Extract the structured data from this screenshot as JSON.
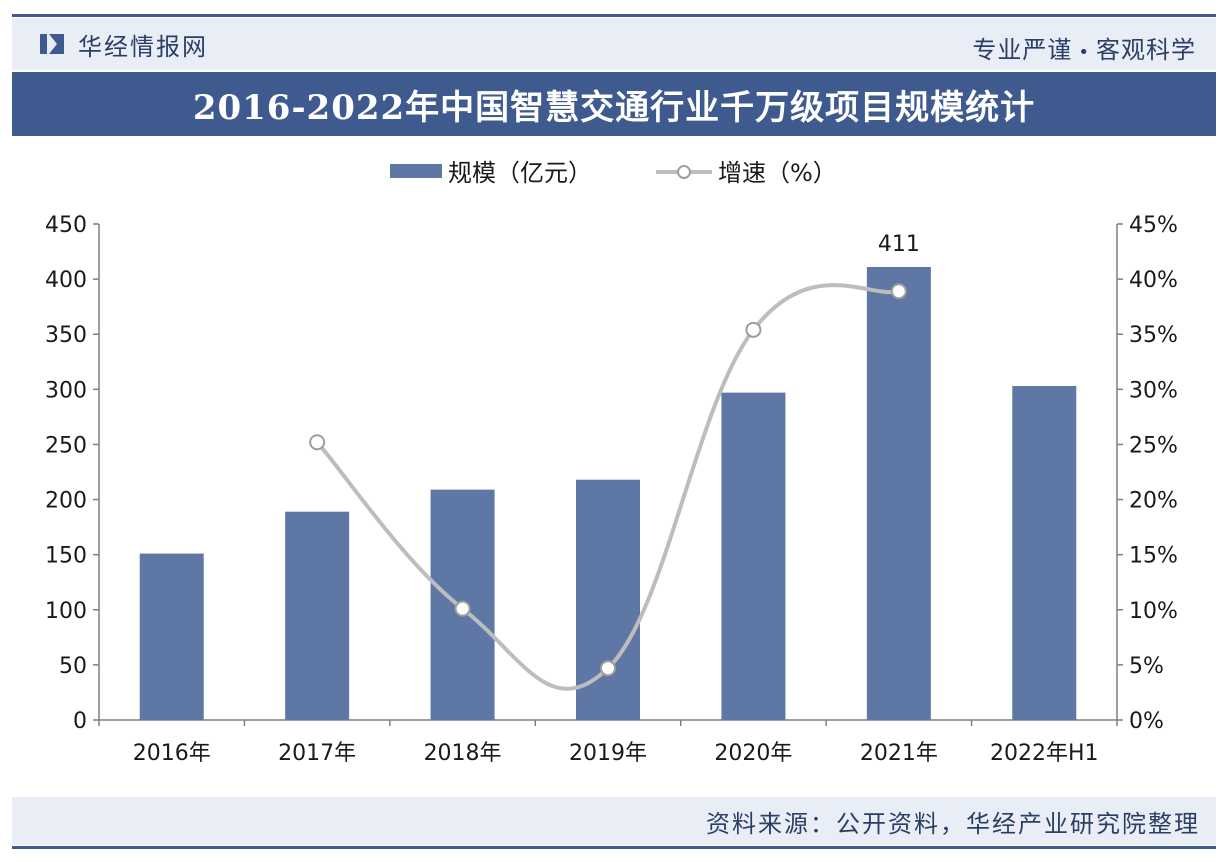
{
  "header": {
    "brand_name": "华经情报网",
    "slogan_left": "专业严谨",
    "slogan_sep": "•",
    "slogan_right": "客观科学"
  },
  "title": "2016-2022年中国智慧交通行业千万级项目规模统计",
  "source": "资料来源：公开资料，华经产业研究院整理",
  "colors": {
    "brand": "#3f5a8f",
    "bar": "#5f77a5",
    "line": "#bdbdbd",
    "axis": "#7f7f7f",
    "text": "#1a1a1a"
  },
  "chart_data": {
    "type": "bar+line",
    "categories": [
      "2016年",
      "2017年",
      "2018年",
      "2019年",
      "2020年",
      "2021年",
      "2022年H1"
    ],
    "series": [
      {
        "name": "规模（亿元）",
        "type": "bar",
        "axis": "left",
        "values": [
          151,
          189,
          209,
          218,
          297,
          411,
          303
        ]
      },
      {
        "name": "增速（%）",
        "type": "line",
        "axis": "right",
        "values": [
          null,
          25.2,
          10.1,
          4.7,
          35.4,
          38.9,
          null
        ]
      }
    ],
    "data_labels": [
      {
        "index": 5,
        "series": 0,
        "text": "411"
      }
    ],
    "y_left": {
      "min": 0,
      "max": 450,
      "ticks": [
        "0",
        "50",
        "100",
        "150",
        "200",
        "250",
        "300",
        "350",
        "400",
        "450"
      ]
    },
    "y_right": {
      "min": 0,
      "max": 45,
      "ticks": [
        "0%",
        "5%",
        "10%",
        "15%",
        "20%",
        "25%",
        "30%",
        "35%",
        "40%",
        "45%"
      ]
    },
    "legend": {
      "position": "top-center",
      "entries": [
        "规模（亿元）",
        "增速（%）"
      ]
    },
    "grid": false
  }
}
